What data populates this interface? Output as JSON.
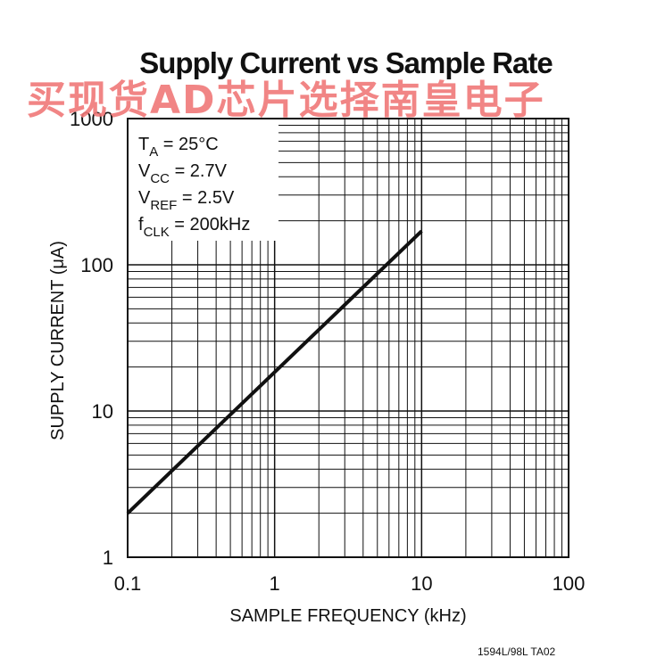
{
  "footnote": "1594L/98L TA02",
  "watermark": "买现货AD芯片选择南皇电子",
  "chart_data": {
    "type": "line",
    "title": "Supply Current vs Sample Rate",
    "xlabel": "SAMPLE FREQUENCY (kHz)",
    "ylabel": "SUPPLY CURRENT (μA)",
    "x_scale": "log",
    "y_scale": "log",
    "xlim": [
      0.1,
      100
    ],
    "ylim": [
      1,
      1000
    ],
    "xticks": [
      0.1,
      1,
      10,
      100
    ],
    "xtick_labels": [
      "0.1",
      "1",
      "10",
      "100"
    ],
    "yticks": [
      1,
      10,
      100,
      1000
    ],
    "ytick_labels": [
      "1",
      "10",
      "100",
      "1000"
    ],
    "grid": true,
    "annotation": [
      {
        "main": "T",
        "sub": "A",
        "rest": " = 25°C"
      },
      {
        "main": "V",
        "sub": "CC",
        "rest": " = 2.7V"
      },
      {
        "main": "V",
        "sub": "REF",
        "rest": " = 2.5V"
      },
      {
        "main": "f",
        "sub": "CLK",
        "rest": " = 200kHz"
      }
    ],
    "series": [
      {
        "x": [
          0.1,
          10
        ],
        "y": [
          2,
          170
        ]
      }
    ]
  }
}
